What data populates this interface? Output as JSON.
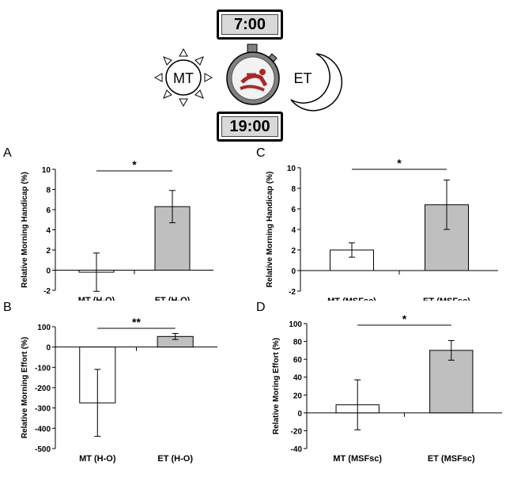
{
  "header": {
    "morning_time": "7:00",
    "evening_time": "19:00",
    "mt_label": "MT",
    "et_label": "ET"
  },
  "colors": {
    "mt_bar": "#ffffff",
    "et_bar": "#bfbfbf",
    "stopwatch_body": "#808080",
    "stopwatch_figure": "#a52a2a"
  },
  "chart_data": [
    {
      "panel": "A",
      "type": "bar",
      "categories": [
        "MT (H-O)",
        "ET (H-O)"
      ],
      "values": [
        -0.2,
        6.3
      ],
      "errors": [
        1.9,
        1.6
      ],
      "ylabel": "Relative Morning Handicap (%)",
      "ylim": [
        -2,
        10
      ],
      "yticks": [
        "-2",
        "0",
        "2",
        "4",
        "6",
        "8",
        "10"
      ],
      "significance": "*"
    },
    {
      "panel": "B",
      "type": "bar",
      "categories": [
        "MT (H-O)",
        "ET (H-O)"
      ],
      "values": [
        -275,
        52
      ],
      "errors": [
        165,
        15
      ],
      "ylabel": "Relative Morning Effort (%)",
      "ylim": [
        -500,
        100
      ],
      "yticks": [
        "-500",
        "-400",
        "-300",
        "-200",
        "-100",
        "0",
        "100"
      ],
      "significance": "**"
    },
    {
      "panel": "C",
      "type": "bar",
      "categories": [
        "MT (MSFsc)",
        "ET (MSFsc)"
      ],
      "values": [
        2.0,
        6.4
      ],
      "errors": [
        0.7,
        2.4
      ],
      "ylabel": "Relative Morning Handicap (%)",
      "ylim": [
        -2,
        10
      ],
      "yticks": [
        "-2",
        "0",
        "2",
        "4",
        "6",
        "8",
        "10"
      ],
      "significance": "*"
    },
    {
      "panel": "D",
      "type": "bar",
      "categories": [
        "MT (MSFsc)",
        "ET (MSFsc)"
      ],
      "values": [
        9,
        70
      ],
      "errors": [
        28,
        11
      ],
      "ylabel": "Relative Moring Effort (%)",
      "ylim": [
        -40,
        100
      ],
      "yticks": [
        "-40",
        "-20",
        "0",
        "20",
        "40",
        "60",
        "80",
        "100"
      ],
      "significance": "*"
    }
  ]
}
